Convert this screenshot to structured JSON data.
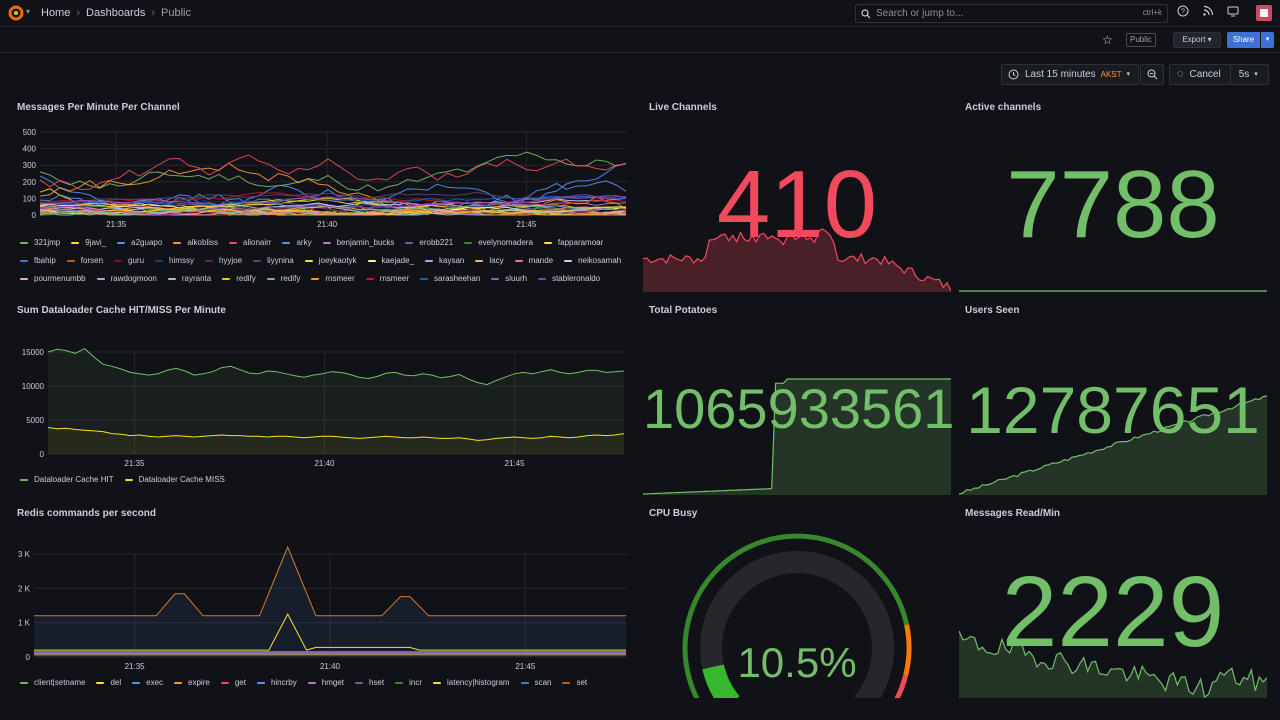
{
  "nav": {
    "breadcrumb": [
      "Home",
      "Dashboards",
      "Public"
    ],
    "search_placeholder": "Search or jump to...",
    "search_shortcut": "ctrl+k"
  },
  "toolbar": {
    "public_badge": "Public",
    "export_label": "Export",
    "share_label": "Share",
    "time_range": "Last 15 minutes",
    "timezone": "AKST",
    "cancel_label": "Cancel",
    "refresh_interval": "5s"
  },
  "colors": {
    "background": "#111217",
    "panel_text": "#ccccdc",
    "stat_red": "#f2495c",
    "stat_green": "#73bf69",
    "gauge_green": "#37872d",
    "gauge_orange": "#ff780a",
    "gauge_red": "#f2495c"
  },
  "panels": {
    "messages": {
      "title": "Messages Per Minute Per Channel",
      "y_ticks": [
        "500",
        "400",
        "300",
        "200",
        "100",
        "0"
      ],
      "x_ticks": [
        "21:35",
        "21:40",
        "21:45"
      ],
      "legend": [
        {
          "label": "321jmp",
          "color": "#73bf69"
        },
        {
          "label": "9javi_",
          "color": "#fade2a"
        },
        {
          "label": "a2guapo",
          "color": "#5794f2"
        },
        {
          "label": "alkobliss",
          "color": "#ff9830"
        },
        {
          "label": "alionairr",
          "color": "#f2495c"
        },
        {
          "label": "arky",
          "color": "#5794f2"
        },
        {
          "label": "benjamin_bucks",
          "color": "#b877d9"
        },
        {
          "label": "erobb221",
          "color": "#705da0"
        },
        {
          "label": "evelynomadera",
          "color": "#37872d"
        },
        {
          "label": "fapparamoar",
          "color": "#fade2a"
        },
        {
          "label": "fbahip",
          "color": "#447ebc"
        },
        {
          "label": "forsen",
          "color": "#c15c17"
        },
        {
          "label": "guru",
          "color": "#890f02"
        },
        {
          "label": "himssy",
          "color": "#0a437c"
        },
        {
          "label": "hyyjoe",
          "color": "#6d1f62"
        },
        {
          "label": "liyynina",
          "color": "#584477"
        },
        {
          "label": "joeykaotyk",
          "color": "#fade2a"
        },
        {
          "label": "kaejade_",
          "color": "#fff899"
        },
        {
          "label": "kaysan",
          "color": "#8ab8ff"
        },
        {
          "label": "lacy",
          "color": "#ffb357"
        },
        {
          "label": "mande",
          "color": "#ff7383"
        },
        {
          "label": "neikosamah",
          "color": "#c0d8ff"
        },
        {
          "label": "pourmenumbb",
          "color": "#ffa6b0"
        },
        {
          "label": "rawdogmoon",
          "color": "#ca95e5"
        },
        {
          "label": "rayranta",
          "color": "#96d98d"
        },
        {
          "label": "redify",
          "color": "#f2cc0c"
        },
        {
          "label": "redify",
          "color": "#73bf69"
        },
        {
          "label": "rnsmeer",
          "color": "#ff9830"
        },
        {
          "label": "rnsmeer",
          "color": "#c4162a"
        },
        {
          "label": "sarasheehan",
          "color": "#1f60c4"
        },
        {
          "label": "sluurh",
          "color": "#a352cc"
        },
        {
          "label": "stableronaldo",
          "color": "#8f3bb8"
        }
      ]
    },
    "cache": {
      "title": "Sum Dataloader Cache HIT/MISS Per Minute",
      "y_ticks": [
        "15000",
        "10000",
        "5000",
        "0"
      ],
      "x_ticks": [
        "21:35",
        "21:40",
        "21:45"
      ],
      "legend": [
        {
          "label": "Dataloader Cache HIT",
          "color": "#73bf69"
        },
        {
          "label": "Dataloader Cache MISS",
          "color": "#fade2a"
        }
      ]
    },
    "redis": {
      "title": "Redis commands per second",
      "y_ticks": [
        "3 K",
        "2 K",
        "1 K",
        "0"
      ],
      "x_ticks": [
        "21:35",
        "21:40",
        "21:45"
      ],
      "legend": [
        {
          "label": "client|setname",
          "color": "#73bf69"
        },
        {
          "label": "del",
          "color": "#fade2a"
        },
        {
          "label": "exec",
          "color": "#5794f2"
        },
        {
          "label": "expire",
          "color": "#ff9830"
        },
        {
          "label": "get",
          "color": "#f2495c"
        },
        {
          "label": "hincrby",
          "color": "#5794f2"
        },
        {
          "label": "hmget",
          "color": "#b877d9"
        },
        {
          "label": "hset",
          "color": "#705da0"
        },
        {
          "label": "incr",
          "color": "#37872d"
        },
        {
          "label": "latency|histogram",
          "color": "#fade2a"
        },
        {
          "label": "scan",
          "color": "#447ebc"
        },
        {
          "label": "set",
          "color": "#c15c17"
        }
      ]
    },
    "live_channels": {
      "title": "Live Channels",
      "value": "410"
    },
    "active_channels": {
      "title": "Active channels",
      "value": "7788"
    },
    "total_potatoes": {
      "title": "Total Potatoes",
      "value": "1065933561"
    },
    "users_seen": {
      "title": "Users Seen",
      "value": "12787651"
    },
    "cpu_busy": {
      "title": "CPU Busy",
      "value": "10.5%",
      "fraction": 0.105
    },
    "messages_read": {
      "title": "Messages Read/Min",
      "value": "2229"
    }
  }
}
